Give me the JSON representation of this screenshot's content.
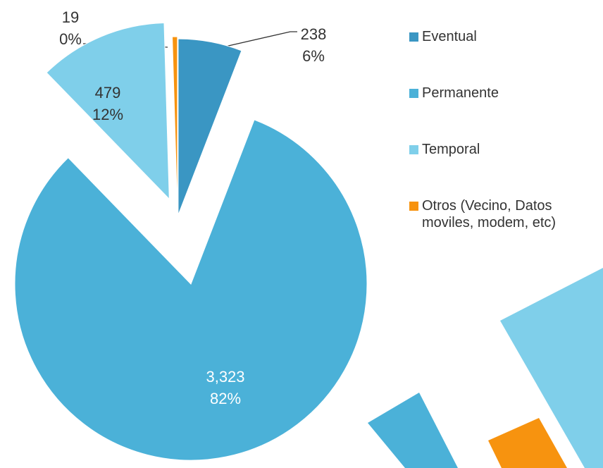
{
  "chart_data": {
    "type": "pie",
    "categories": [
      "Eventual",
      "Permanente",
      "Temporal",
      "Otros (Vecino, Datos moviles, modem, etc)"
    ],
    "values": [
      238,
      3323,
      479,
      19
    ],
    "value_labels": [
      "238",
      "3,323",
      "479",
      "19"
    ],
    "percent_labels": [
      "6%",
      "82%",
      "12%",
      "0%"
    ],
    "colors": [
      "#3a96c3",
      "#4bb1d8",
      "#7fcfea",
      "#f7930f"
    ],
    "legend": "right"
  }
}
